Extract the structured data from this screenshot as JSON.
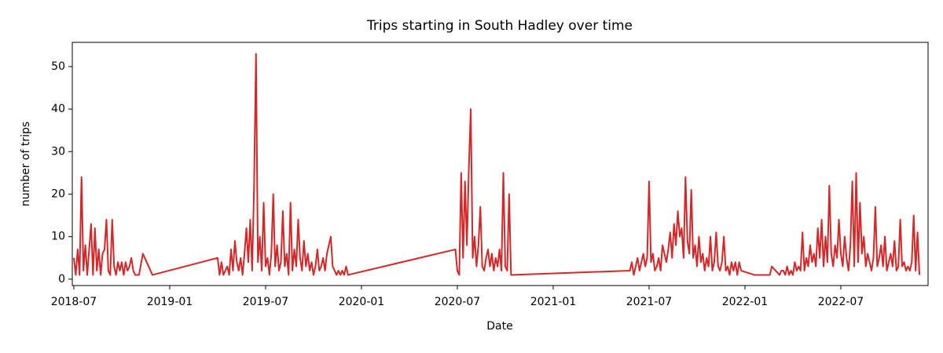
{
  "chart_data": {
    "type": "line",
    "title": "Trips starting in South Hadley over time",
    "x_label": "Date",
    "y_label": "number of trips",
    "x": [
      2018.5,
      2018.51,
      2018.52,
      2018.53,
      2018.54,
      2018.55,
      2018.56,
      2018.57,
      2018.58,
      2018.59,
      2018.6,
      2018.61,
      2018.62,
      2018.63,
      2018.64,
      2018.65,
      2018.66,
      2018.67,
      2018.68,
      2018.69,
      2018.7,
      2018.71,
      2018.72,
      2018.73,
      2018.74,
      2018.75,
      2018.76,
      2018.77,
      2018.78,
      2018.79,
      2018.8,
      2018.81,
      2018.82,
      2018.84,
      2018.86,
      2018.88,
      2018.9,
      2018.91,
      2019.25,
      2019.26,
      2019.27,
      2019.28,
      2019.29,
      2019.3,
      2019.31,
      2019.32,
      2019.33,
      2019.34,
      2019.35,
      2019.36,
      2019.37,
      2019.38,
      2019.39,
      2019.4,
      2019.41,
      2019.42,
      2019.43,
      2019.44,
      2019.45,
      2019.46,
      2019.47,
      2019.48,
      2019.49,
      2019.5,
      2019.51,
      2019.52,
      2019.53,
      2019.54,
      2019.55,
      2019.56,
      2019.57,
      2019.58,
      2019.59,
      2019.6,
      2019.61,
      2019.62,
      2019.63,
      2019.64,
      2019.65,
      2019.66,
      2019.67,
      2019.68,
      2019.69,
      2019.7,
      2019.71,
      2019.72,
      2019.73,
      2019.74,
      2019.75,
      2019.76,
      2019.77,
      2019.78,
      2019.79,
      2019.8,
      2019.81,
      2019.82,
      2019.83,
      2019.84,
      2019.85,
      2019.86,
      2019.87,
      2019.88,
      2019.89,
      2019.9,
      2019.91,
      2019.92,
      2019.93,
      2020.49,
      2020.5,
      2020.51,
      2020.52,
      2020.53,
      2020.54,
      2020.55,
      2020.56,
      2020.57,
      2020.58,
      2020.59,
      2020.6,
      2020.61,
      2020.62,
      2020.63,
      2020.64,
      2020.65,
      2020.66,
      2020.67,
      2020.68,
      2020.69,
      2020.7,
      2020.71,
      2020.72,
      2020.73,
      2020.74,
      2020.75,
      2020.76,
      2020.77,
      2020.78,
      2021.4,
      2021.41,
      2021.42,
      2021.43,
      2021.44,
      2021.45,
      2021.46,
      2021.47,
      2021.48,
      2021.49,
      2021.5,
      2021.51,
      2021.52,
      2021.53,
      2021.54,
      2021.55,
      2021.56,
      2021.57,
      2021.58,
      2021.59,
      2021.6,
      2021.61,
      2021.62,
      2021.63,
      2021.64,
      2021.65,
      2021.66,
      2021.67,
      2021.68,
      2021.69,
      2021.7,
      2021.71,
      2021.72,
      2021.73,
      2021.74,
      2021.75,
      2021.76,
      2021.77,
      2021.78,
      2021.79,
      2021.8,
      2021.81,
      2021.82,
      2021.83,
      2021.84,
      2021.85,
      2021.86,
      2021.87,
      2021.88,
      2021.89,
      2021.9,
      2021.91,
      2021.92,
      2021.93,
      2021.94,
      2021.95,
      2021.96,
      2021.97,
      2021.98,
      2022.05,
      2022.13,
      2022.14,
      2022.16,
      2022.18,
      2022.19,
      2022.2,
      2022.21,
      2022.22,
      2022.23,
      2022.24,
      2022.25,
      2022.26,
      2022.27,
      2022.28,
      2022.29,
      2022.3,
      2022.31,
      2022.32,
      2022.33,
      2022.34,
      2022.35,
      2022.36,
      2022.37,
      2022.38,
      2022.39,
      2022.4,
      2022.41,
      2022.42,
      2022.43,
      2022.44,
      2022.45,
      2022.46,
      2022.47,
      2022.48,
      2022.49,
      2022.5,
      2022.51,
      2022.52,
      2022.53,
      2022.54,
      2022.55,
      2022.56,
      2022.57,
      2022.58,
      2022.59,
      2022.6,
      2022.61,
      2022.62,
      2022.63,
      2022.64,
      2022.65,
      2022.66,
      2022.67,
      2022.68,
      2022.69,
      2022.7,
      2022.71,
      2022.72,
      2022.73,
      2022.74,
      2022.75,
      2022.76,
      2022.77,
      2022.78,
      2022.79,
      2022.8,
      2022.81,
      2022.82,
      2022.83,
      2022.84,
      2022.85,
      2022.86,
      2022.87,
      2022.88,
      2022.89,
      2022.9,
      2022.91
    ],
    "series": [
      {
        "name": "trips",
        "color": "#d62728",
        "values": [
          5,
          1,
          7,
          1,
          24,
          2,
          8,
          1,
          7,
          13,
          1,
          12,
          2,
          7,
          1,
          6,
          7,
          14,
          2,
          1,
          14,
          3,
          1,
          4,
          2,
          4,
          1,
          4,
          2,
          3,
          5,
          2,
          1,
          1,
          6,
          4,
          2,
          1,
          5,
          1,
          4,
          1,
          2,
          3,
          1,
          7,
          2,
          9,
          4,
          2,
          5,
          1,
          6,
          12,
          4,
          14,
          2,
          22,
          53,
          4,
          10,
          2,
          18,
          3,
          5,
          1,
          6,
          20,
          3,
          8,
          2,
          4,
          16,
          3,
          6,
          1,
          18,
          2,
          7,
          3,
          14,
          5,
          2,
          9,
          3,
          6,
          2,
          4,
          1,
          3,
          7,
          2,
          3,
          5,
          2,
          6,
          8,
          10,
          3,
          2,
          1,
          2,
          1,
          2,
          1,
          3,
          1,
          7,
          2,
          1,
          25,
          5,
          23,
          8,
          26,
          40,
          5,
          10,
          3,
          8,
          17,
          3,
          2,
          5,
          7,
          3,
          6,
          2,
          5,
          3,
          7,
          2,
          25,
          3,
          2,
          20,
          1,
          2,
          4,
          1,
          3,
          5,
          2,
          4,
          6,
          3,
          5,
          23,
          4,
          6,
          2,
          3,
          5,
          2,
          8,
          6,
          4,
          7,
          11,
          5,
          13,
          8,
          16,
          10,
          12,
          5,
          24,
          9,
          6,
          21,
          5,
          8,
          3,
          10,
          4,
          6,
          2,
          5,
          3,
          10,
          2,
          4,
          11,
          3,
          2,
          4,
          10,
          2,
          3,
          1,
          4,
          2,
          4,
          1,
          4,
          2,
          1,
          1,
          3,
          2,
          1,
          2,
          2,
          1,
          3,
          1,
          2,
          1,
          4,
          2,
          3,
          2,
          11,
          2,
          5,
          3,
          8,
          4,
          6,
          3,
          12,
          5,
          14,
          3,
          10,
          4,
          22,
          6,
          3,
          8,
          5,
          14,
          6,
          3,
          10,
          5,
          2,
          8,
          23,
          3,
          25,
          4,
          18,
          6,
          10,
          3,
          6,
          4,
          2,
          5,
          17,
          3,
          5,
          8,
          3,
          10,
          2,
          4,
          6,
          3,
          9,
          2,
          3,
          14,
          3,
          4,
          2,
          3,
          2,
          4,
          15,
          2,
          11,
          1
        ]
      }
    ],
    "xlim": [
      2018.492,
      2022.955
    ],
    "ylim": [
      -1.5,
      55.7
    ],
    "xticks": [
      {
        "value": 2018.5,
        "label": "2018-07"
      },
      {
        "value": 2019.0,
        "label": "2019-01"
      },
      {
        "value": 2019.5,
        "label": "2019-07"
      },
      {
        "value": 2020.0,
        "label": "2020-01"
      },
      {
        "value": 2020.5,
        "label": "2020-07"
      },
      {
        "value": 2021.0,
        "label": "2021-01"
      },
      {
        "value": 2021.5,
        "label": "2021-07"
      },
      {
        "value": 2022.0,
        "label": "2022-01"
      },
      {
        "value": 2022.5,
        "label": "2022-07"
      }
    ],
    "yticks": [
      0,
      10,
      20,
      30,
      40,
      50
    ]
  }
}
